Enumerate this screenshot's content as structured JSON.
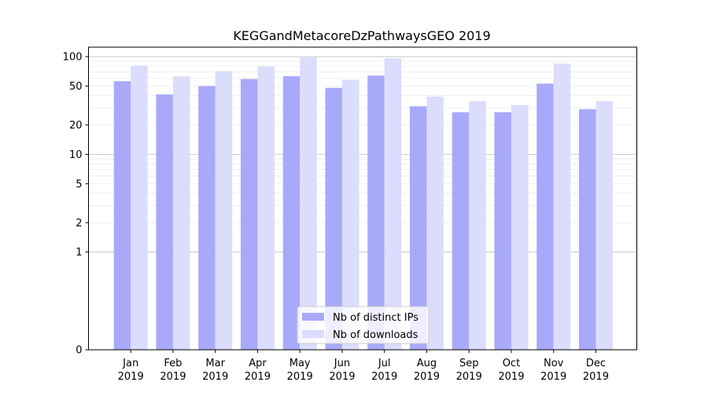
{
  "chart_data": {
    "type": "bar",
    "title": "KEGGandMetacoreDzPathwaysGEO 2019",
    "xlabel": "",
    "ylabel": "",
    "y_scale": "symlog",
    "ylim": [
      0,
      125
    ],
    "y_ticks": [
      0,
      1,
      2,
      5,
      10,
      20,
      50,
      100
    ],
    "grid": "horizontal",
    "legend_position": "bottom-center",
    "categories": [
      "Jan\n2019",
      "Feb\n2019",
      "Mar\n2019",
      "Apr\n2019",
      "May\n2019",
      "Jun\n2019",
      "Jul\n2019",
      "Aug\n2019",
      "Sep\n2019",
      "Oct\n2019",
      "Nov\n2019",
      "Dec\n2019"
    ],
    "series": [
      {
        "name": "Nb of distinct IPs",
        "color": "#a9a9f9",
        "values": [
          56,
          41,
          50,
          59,
          63,
          48,
          64,
          31,
          27,
          27,
          53,
          29
        ]
      },
      {
        "name": "Nb of downloads",
        "color": "#dcdcfd",
        "values": [
          81,
          63,
          71,
          79,
          98,
          58,
          96,
          39,
          35,
          32,
          85,
          35
        ]
      }
    ]
  }
}
